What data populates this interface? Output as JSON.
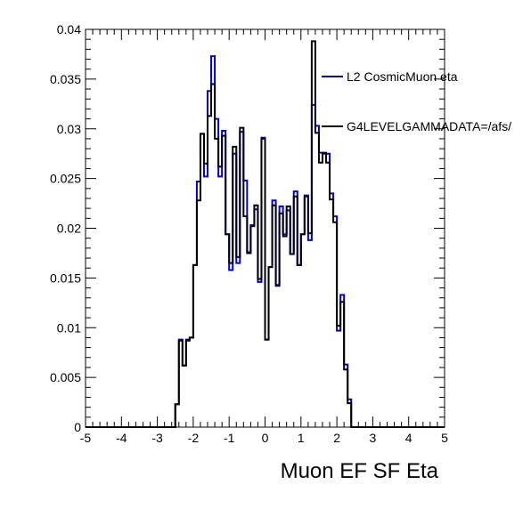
{
  "chart_data": {
    "type": "line",
    "xlabel": "Muon EF SF Eta",
    "ylabel": "",
    "xlim": [
      -5,
      5
    ],
    "ylim": [
      0,
      0.04
    ],
    "x_ticks": [
      "-5",
      "-4",
      "-3",
      "-2",
      "-1",
      "0",
      "1",
      "2",
      "3",
      "4",
      "5"
    ],
    "y_ticks": [
      "0",
      "0.005",
      "0.01",
      "0.015",
      "0.02",
      "0.025",
      "0.03",
      "0.035",
      "0.04"
    ],
    "grid": false,
    "legend_position": "right",
    "bin_edges_start": -5.0,
    "bin_width": 0.1,
    "series": [
      {
        "name": "L2 CosmicMuon eta",
        "color": "#0000cc",
        "style": "step",
        "values": [
          0,
          0,
          0,
          0,
          0,
          0,
          0,
          0,
          0,
          0,
          0,
          0,
          0,
          0,
          0,
          0,
          0,
          0,
          0,
          0,
          0,
          0,
          0,
          0,
          0,
          0.0023,
          0.0088,
          0.0062,
          0.0088,
          0.009,
          0.0163,
          0.0247,
          0.0295,
          0.0252,
          0.0338,
          0.0373,
          0.031,
          0.0252,
          0.0298,
          0.0194,
          0.0158,
          0.0275,
          0.0165,
          0.0297,
          0.0248,
          0.0176,
          0.0202,
          0.0219,
          0.0146,
          0.0291,
          0.0088,
          0.0161,
          0.0228,
          0.0142,
          0.0222,
          0.0194,
          0.0218,
          0.0174,
          0.0237,
          0.0163,
          0.0194,
          0.0233,
          0.0188,
          0.0324,
          0.0303,
          0.0276,
          0.0275,
          0.0275,
          0.0235,
          0.0212,
          0.0097,
          0.0133,
          0.0063,
          0.0028,
          0,
          0,
          0,
          0,
          0,
          0,
          0,
          0,
          0,
          0,
          0,
          0,
          0,
          0,
          0,
          0,
          0,
          0,
          0,
          0,
          0,
          0,
          0,
          0,
          0,
          0
        ]
      },
      {
        "name": "G4LEVELGAMMADATA=/afs/",
        "color": "#000000",
        "style": "step",
        "values": [
          0,
          0,
          0,
          0,
          0,
          0,
          0,
          0,
          0,
          0,
          0,
          0,
          0,
          0,
          0,
          0,
          0,
          0,
          0,
          0,
          0,
          0,
          0,
          0,
          0,
          0.0023,
          0.0087,
          0.0062,
          0.0087,
          0.009,
          0.0163,
          0.0228,
          0.0295,
          0.0265,
          0.0313,
          0.0345,
          0.029,
          0.0262,
          0.0293,
          0.0194,
          0.0165,
          0.0282,
          0.0171,
          0.0301,
          0.0212,
          0.0175,
          0.0203,
          0.0223,
          0.0149,
          0.029,
          0.0088,
          0.0161,
          0.0223,
          0.0143,
          0.0215,
          0.0192,
          0.0222,
          0.0174,
          0.0232,
          0.0163,
          0.0194,
          0.0232,
          0.0195,
          0.0388,
          0.0296,
          0.0266,
          0.0276,
          0.0266,
          0.0229,
          0.0206,
          0.0102,
          0.0126,
          0.0058,
          0.0024,
          0,
          0,
          0,
          0,
          0,
          0,
          0,
          0,
          0,
          0,
          0,
          0,
          0,
          0,
          0,
          0,
          0,
          0,
          0,
          0,
          0,
          0,
          0,
          0,
          0,
          0
        ]
      }
    ]
  }
}
